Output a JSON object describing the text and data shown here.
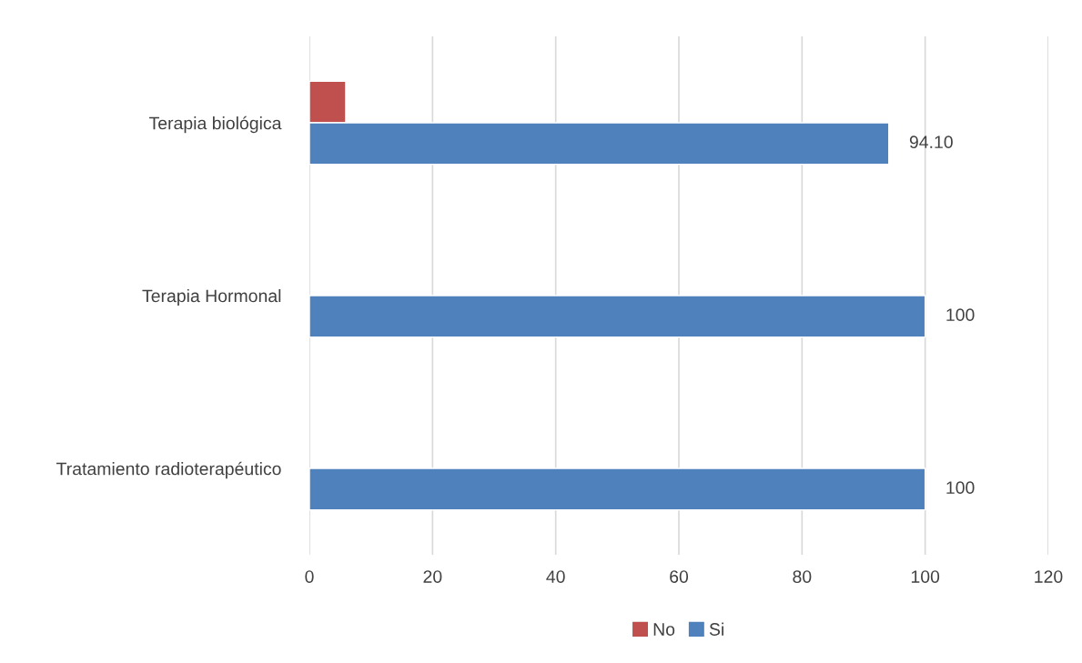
{
  "chart_data": {
    "type": "bar",
    "orientation": "horizontal",
    "categories": [
      "Terapia biológica",
      "Terapia Hormonal",
      "Tratamiento radioterapéutico"
    ],
    "series": [
      {
        "name": "No",
        "color": "#c0504d",
        "values": [
          5.9,
          null,
          null
        ]
      },
      {
        "name": "Si",
        "color": "#4f81bd",
        "values": [
          94.1,
          100,
          100
        ],
        "value_labels": [
          "94.10",
          "100",
          "100"
        ]
      }
    ],
    "xlim": [
      0,
      120
    ],
    "xticks": [
      0,
      20,
      40,
      60,
      80,
      100,
      120
    ],
    "grid": "x",
    "legend": "bottom"
  }
}
